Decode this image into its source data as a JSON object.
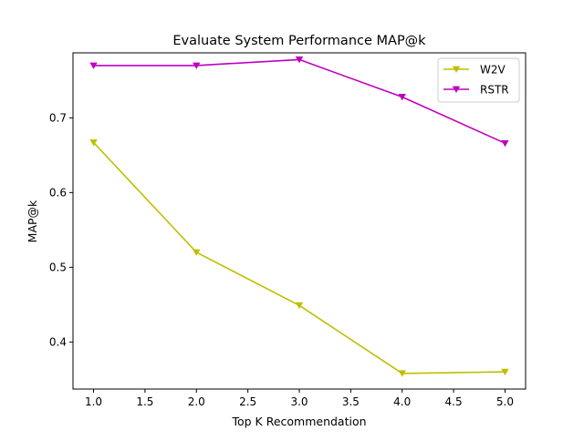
{
  "chart_data": {
    "type": "line",
    "title": "Evaluate System Performance MAP@k",
    "xlabel": "Top K Recommendation",
    "ylabel": "MAP@k",
    "x": [
      1.0,
      2.0,
      3.0,
      4.0,
      5.0
    ],
    "xlim": [
      0.8,
      5.2
    ],
    "ylim": [
      0.337,
      0.787
    ],
    "xticks": [
      1.0,
      1.5,
      2.0,
      2.5,
      3.0,
      3.5,
      4.0,
      4.5,
      5.0
    ],
    "xtick_labels": [
      "1.0",
      "1.5",
      "2.0",
      "2.5",
      "3.0",
      "3.5",
      "4.0",
      "4.5",
      "5.0"
    ],
    "yticks": [
      0.4,
      0.5,
      0.6,
      0.7
    ],
    "ytick_labels": [
      "0.4",
      "0.5",
      "0.6",
      "0.7"
    ],
    "grid": false,
    "legend_position": "top-right",
    "marker": "triangle-down",
    "series": [
      {
        "name": "W2V",
        "color": "#bfbf00",
        "values": [
          0.667,
          0.52,
          0.449,
          0.358,
          0.36
        ]
      },
      {
        "name": "RSTR",
        "color": "#bf00bf",
        "values": [
          0.77,
          0.77,
          0.778,
          0.728,
          0.666
        ]
      }
    ]
  }
}
